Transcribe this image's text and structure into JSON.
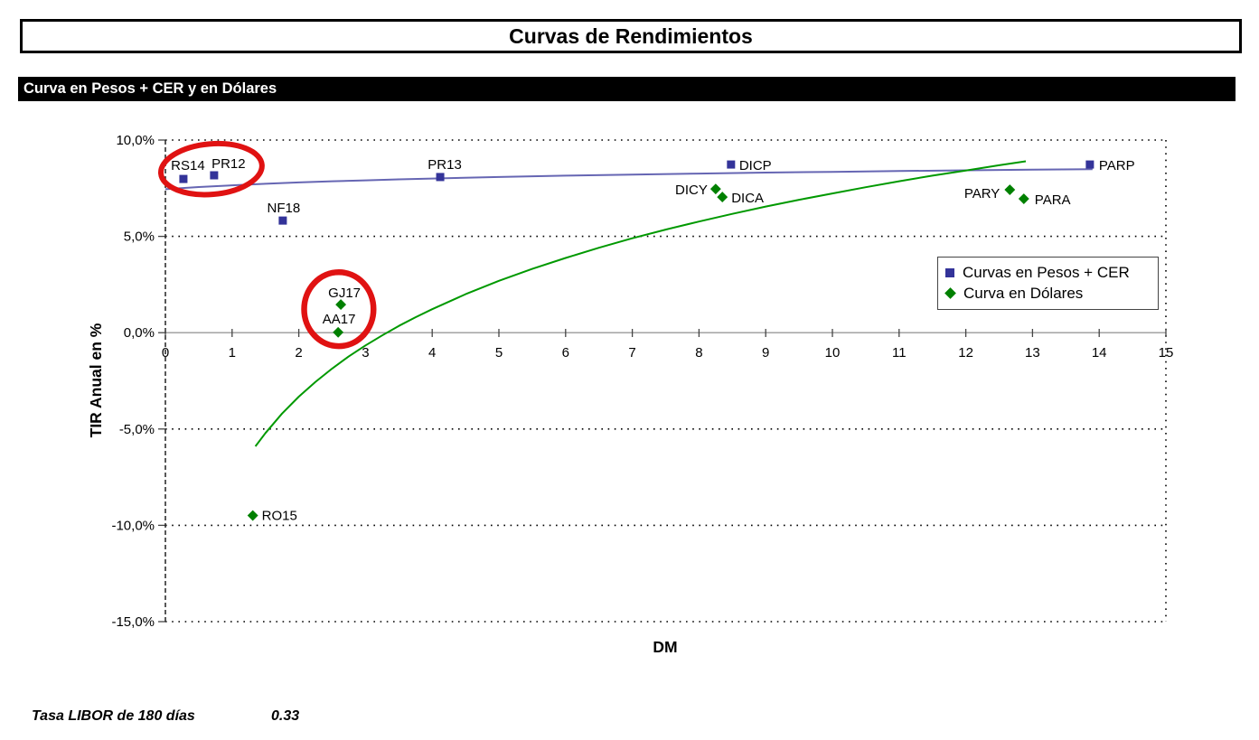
{
  "header": {
    "title": "Curvas de Rendimientos",
    "section_title": "Curva en Pesos + CER y en Dólares"
  },
  "footer": {
    "label": "Tasa LIBOR de 180 días",
    "value": "0.33"
  },
  "chart_data": {
    "type": "scatter",
    "xlabel": "DM",
    "ylabel": "TIR Anual en %",
    "xlim": [
      0,
      15
    ],
    "ylim": [
      -15,
      10
    ],
    "x_ticks": [
      0,
      1,
      2,
      3,
      4,
      5,
      6,
      7,
      8,
      9,
      10,
      11,
      12,
      13,
      14,
      15
    ],
    "y_ticks": [
      {
        "v": 10,
        "label": "10,0%",
        "grid": "dotted"
      },
      {
        "v": 5,
        "label": "5,0%",
        "grid": "dotted"
      },
      {
        "v": 0,
        "label": "0,0%",
        "grid": "axis"
      },
      {
        "v": -5,
        "label": "-5,0%",
        "grid": "dotted"
      },
      {
        "v": -10,
        "label": "-10,0%",
        "grid": "dotted"
      },
      {
        "v": -15,
        "label": "-15,0%",
        "grid": "dotted"
      }
    ],
    "frame": {
      "right_border": "dotted",
      "left_axis": "dashed",
      "grid_color": "#000000",
      "axis_color": "#999999"
    },
    "legend": {
      "position": "right-middle",
      "items": [
        {
          "label": "Curvas en Pesos + CER",
          "marker": "square",
          "color": "#333399"
        },
        {
          "label": "Curva en Dólares",
          "marker": "diamond",
          "color": "#008000"
        }
      ]
    },
    "series": [
      {
        "name": "Curvas en Pesos + CER",
        "marker": "square",
        "color": "#333399",
        "points": [
          {
            "label": "RS14",
            "x": 0.27,
            "y": 7.98,
            "anchor": "middle",
            "dx": 5,
            "dy": -10
          },
          {
            "label": "PR12",
            "x": 0.73,
            "y": 8.17,
            "anchor": "middle",
            "dx": 16,
            "dy": -8
          },
          {
            "label": "NF18",
            "x": 1.76,
            "y": 5.82,
            "anchor": "middle",
            "dx": 1,
            "dy": -9
          },
          {
            "label": "PR13",
            "x": 4.12,
            "y": 8.08,
            "anchor": "middle",
            "dx": 5,
            "dy": -9
          },
          {
            "label": "DICP",
            "x": 8.48,
            "y": 8.73,
            "anchor": "start",
            "dx": 9,
            "dy": 6
          },
          {
            "label": "PARP",
            "x": 13.86,
            "y": 8.73,
            "anchor": "start",
            "dx": 10,
            "dy": 6
          }
        ]
      },
      {
        "name": "Curva en Dólares",
        "marker": "diamond",
        "color": "#008000",
        "points": [
          {
            "label": "RO15",
            "x": 1.31,
            "y": -9.49,
            "anchor": "start",
            "dx": 10,
            "dy": 5
          },
          {
            "label": "AA17",
            "x": 2.59,
            "y": 0.02,
            "anchor": "middle",
            "dx": 1,
            "dy": -10
          },
          {
            "label": "GJ17",
            "x": 2.63,
            "y": 1.46,
            "anchor": "middle",
            "dx": 4,
            "dy": -8
          },
          {
            "label": "DICY",
            "x": 8.25,
            "y": 7.46,
            "anchor": "end",
            "dx": -9,
            "dy": 6
          },
          {
            "label": "DICA",
            "x": 8.35,
            "y": 7.04,
            "anchor": "start",
            "dx": 10,
            "dy": 6
          },
          {
            "label": "PARY",
            "x": 12.66,
            "y": 7.42,
            "anchor": "end",
            "dx": -11,
            "dy": 9
          },
          {
            "label": "PARA",
            "x": 12.87,
            "y": 6.95,
            "anchor": "start",
            "dx": 12,
            "dy": 6
          }
        ]
      }
    ],
    "curves": [
      {
        "name": "pesos-fit-curve",
        "color": "#6666b3",
        "width": 2,
        "points": [
          [
            0,
            7.45
          ],
          [
            0.5,
            7.56
          ],
          [
            1,
            7.65
          ],
          [
            1.5,
            7.73
          ],
          [
            2,
            7.8
          ],
          [
            2.5,
            7.86
          ],
          [
            3,
            7.91
          ],
          [
            3.5,
            7.96
          ],
          [
            4,
            8.0
          ],
          [
            5,
            8.08
          ],
          [
            6,
            8.15
          ],
          [
            7,
            8.21
          ],
          [
            8,
            8.26
          ],
          [
            9,
            8.31
          ],
          [
            10,
            8.35
          ],
          [
            11,
            8.39
          ],
          [
            12,
            8.43
          ],
          [
            13,
            8.46
          ],
          [
            13.9,
            8.49
          ]
        ]
      },
      {
        "name": "dolares-fit-curve",
        "color": "#009900",
        "width": 2,
        "points": [
          [
            1.35,
            -5.9
          ],
          [
            1.5,
            -5.21
          ],
          [
            1.75,
            -4.2
          ],
          [
            2,
            -3.32
          ],
          [
            2.25,
            -2.55
          ],
          [
            2.5,
            -1.86
          ],
          [
            2.75,
            -1.23
          ],
          [
            3,
            -0.66
          ],
          [
            3.25,
            -0.14
          ],
          [
            3.5,
            0.35
          ],
          [
            3.75,
            0.8
          ],
          [
            4,
            1.22
          ],
          [
            4.5,
            2.0
          ],
          [
            5,
            2.69
          ],
          [
            5.5,
            3.31
          ],
          [
            6,
            3.88
          ],
          [
            6.5,
            4.41
          ],
          [
            7,
            4.9
          ],
          [
            7.5,
            5.35
          ],
          [
            8,
            5.77
          ],
          [
            8.5,
            6.17
          ],
          [
            9,
            6.55
          ],
          [
            9.5,
            6.9
          ],
          [
            10,
            7.23
          ],
          [
            10.5,
            7.55
          ],
          [
            11,
            7.86
          ],
          [
            11.5,
            8.15
          ],
          [
            12,
            8.42
          ],
          [
            12.5,
            8.69
          ],
          [
            12.9,
            8.9
          ]
        ]
      }
    ],
    "annotations": [
      {
        "type": "ellipse",
        "around": "RS14 / PR12",
        "cx": 0.69,
        "cy": 8.49,
        "rx": 0.76,
        "ry": 1.31,
        "rotate": -5,
        "color": "#e01212",
        "stroke_width": 6
      },
      {
        "type": "ellipse",
        "around": "GJ17 / AA17",
        "cx": 2.6,
        "cy": 1.22,
        "rx": 0.52,
        "ry": 1.92,
        "rotate": 0,
        "color": "#e01212",
        "stroke_width": 6.5
      }
    ]
  }
}
